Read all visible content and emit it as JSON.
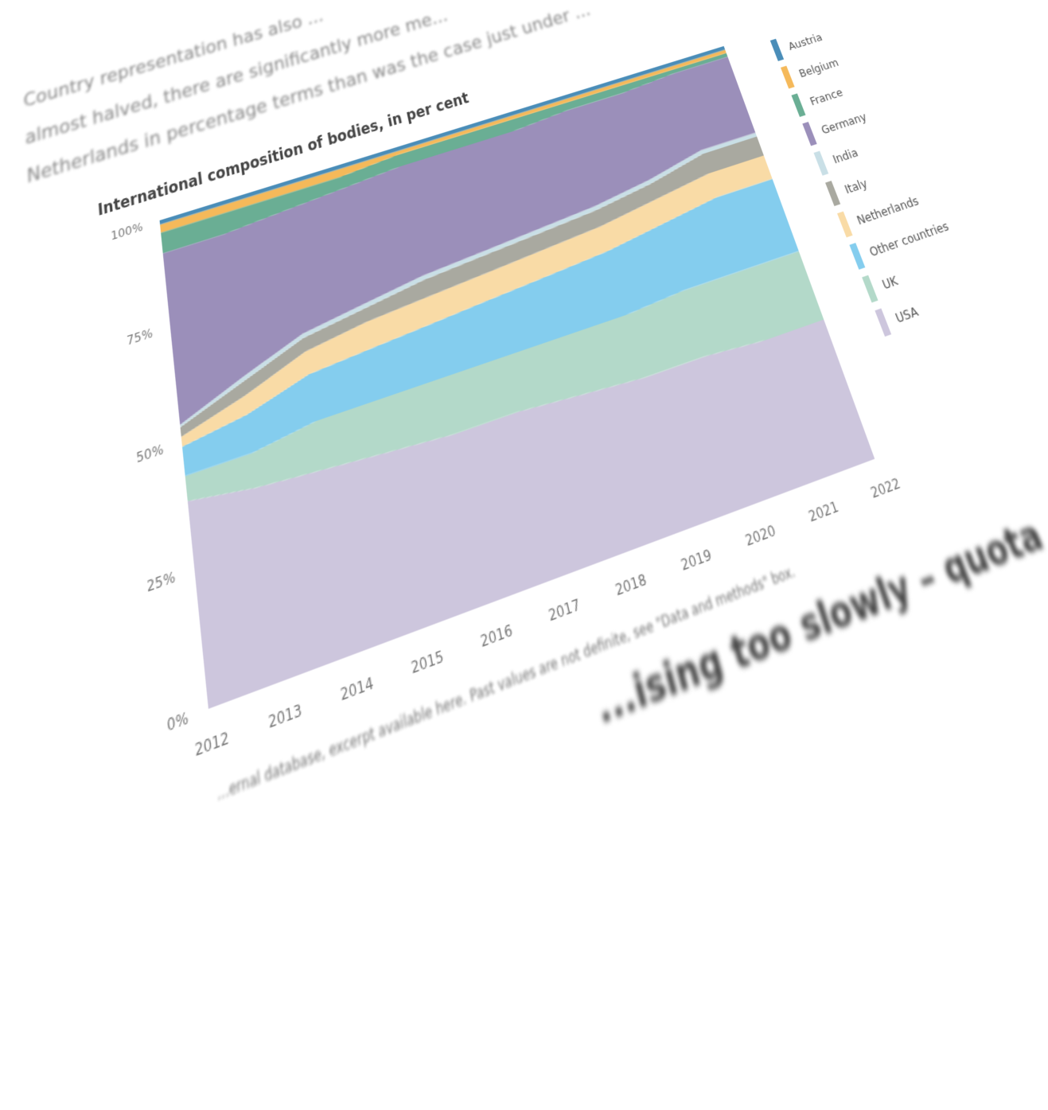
{
  "intro_lines": [
    "Country representation has also ...",
    "almost halved, there are significantly more me...",
    "Netherlands in percentage terms than was the case just under ..."
  ],
  "footnote": "...ernal database, excerpt available here. Past values are not definite, see \"Data and methods\" box.",
  "next_heading": "...ising too slowly – quota",
  "chart_data": {
    "type": "area",
    "stacked": true,
    "title": "International composition of bodies, in per cent",
    "x": [
      "2012",
      "2013",
      "2014",
      "2015",
      "2016",
      "2017",
      "2018",
      "2019",
      "2020",
      "2021",
      "2022"
    ],
    "yticks": [
      "0%",
      "25%",
      "50%",
      "75%",
      "100%"
    ],
    "ylim": [
      0,
      100
    ],
    "legend_position": "right",
    "series": [
      {
        "name": "USA",
        "color": "#cdc6dd",
        "values": [
          38,
          36,
          35,
          34,
          33,
          33,
          32,
          31,
          31,
          30,
          30
        ]
      },
      {
        "name": "UK",
        "color": "#b3d9c9",
        "values": [
          5,
          7,
          10,
          11,
          12,
          12,
          13,
          14,
          15,
          16,
          16
        ]
      },
      {
        "name": "Other countries",
        "color": "#84cdee",
        "values": [
          6,
          8,
          10,
          11,
          12,
          13,
          14,
          15,
          16,
          18,
          18
        ]
      },
      {
        "name": "Netherlands",
        "color": "#f9dba6",
        "values": [
          2,
          4,
          5,
          6,
          6,
          6,
          6,
          6,
          6,
          6,
          6
        ]
      },
      {
        "name": "Italy",
        "color": "#a9a9a0",
        "values": [
          2,
          3,
          3,
          3,
          4,
          4,
          4,
          4,
          4,
          5,
          5
        ]
      },
      {
        "name": "India",
        "color": "#c9dfe6",
        "values": [
          0.5,
          1,
          1,
          1,
          1,
          1,
          1,
          1,
          1,
          1,
          1
        ]
      },
      {
        "name": "Germany",
        "color": "#9b8fba",
        "values": [
          38.5,
          33,
          29,
          28,
          27,
          26,
          25,
          25,
          23,
          21,
          21
        ]
      },
      {
        "name": "France",
        "color": "#6aae94",
        "values": [
          5,
          5,
          4,
          3,
          3,
          3,
          3,
          2,
          2,
          1,
          1
        ]
      },
      {
        "name": "Belgium",
        "color": "#f5b95a",
        "values": [
          2,
          2,
          2,
          2,
          1,
          1,
          1,
          1,
          1,
          1,
          1
        ]
      },
      {
        "name": "Austria",
        "color": "#4a8db8",
        "values": [
          1,
          1,
          1,
          1,
          1,
          1,
          1,
          1,
          1,
          1,
          1
        ]
      }
    ]
  }
}
